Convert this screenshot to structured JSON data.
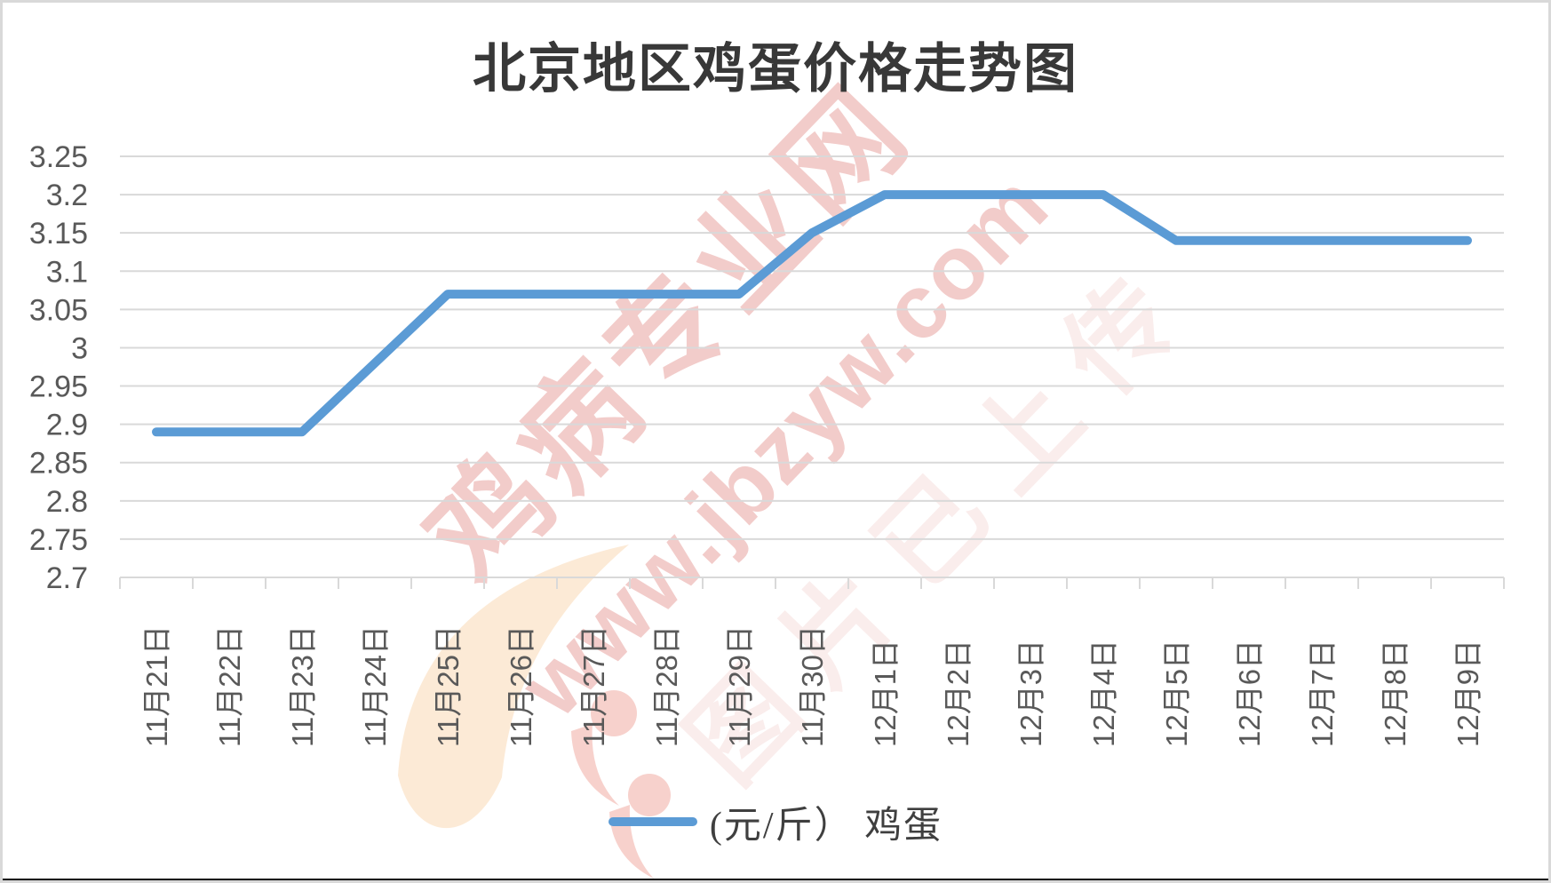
{
  "title": "北京地区鸡蛋价格走势图",
  "legend": {
    "label": "(元/斤） 鸡蛋",
    "series_color": "#5B9BD5"
  },
  "watermark": {
    "brand": "鸡病专业网",
    "url": "www.jbzyw.com",
    "faint_text": "图片已上传",
    "color": "#D65852",
    "logo_orange": "#F6BE7E",
    "logo_pink": "#E98578",
    "logo": "jbzyw-bird-swoosh-logo"
  },
  "frame": {
    "border_color": "#D9D9D9",
    "bottom_line_color": "#0D0D0D"
  },
  "chart_data": {
    "type": "line",
    "title": "北京地区鸡蛋价格走势图",
    "categories": [
      "11月21日",
      "11月22日",
      "11月23日",
      "11月24日",
      "11月25日",
      "11月26日",
      "11月27日",
      "11月28日",
      "11月29日",
      "11月30日",
      "12月1日",
      "12月2日",
      "12月3日",
      "12月4日",
      "12月5日",
      "12月6日",
      "12月7日",
      "12月8日",
      "12月9日"
    ],
    "series": [
      {
        "name": "鸡蛋",
        "unit": "元/斤",
        "values": [
          2.89,
          2.89,
          2.89,
          2.98,
          3.07,
          3.07,
          3.07,
          3.07,
          3.07,
          3.15,
          3.2,
          3.2,
          3.2,
          3.2,
          3.14,
          3.14,
          3.14,
          3.14,
          3.14
        ]
      }
    ],
    "ylim": [
      2.7,
      3.25
    ],
    "ytick_step": 0.05,
    "ytick_labels": [
      "3.25",
      "3.2",
      "3.15",
      "3.1",
      "3.05",
      "3",
      "2.95",
      "2.9",
      "2.85",
      "2.8",
      "2.75",
      "2.7"
    ],
    "xlabel": "",
    "ylabel": "",
    "grid": true,
    "legend_position": "bottom",
    "line_color": "#5B9BD5",
    "grid_color": "#D9D9D9",
    "label_color": "#595959",
    "x_label_rotation_deg": -90
  }
}
